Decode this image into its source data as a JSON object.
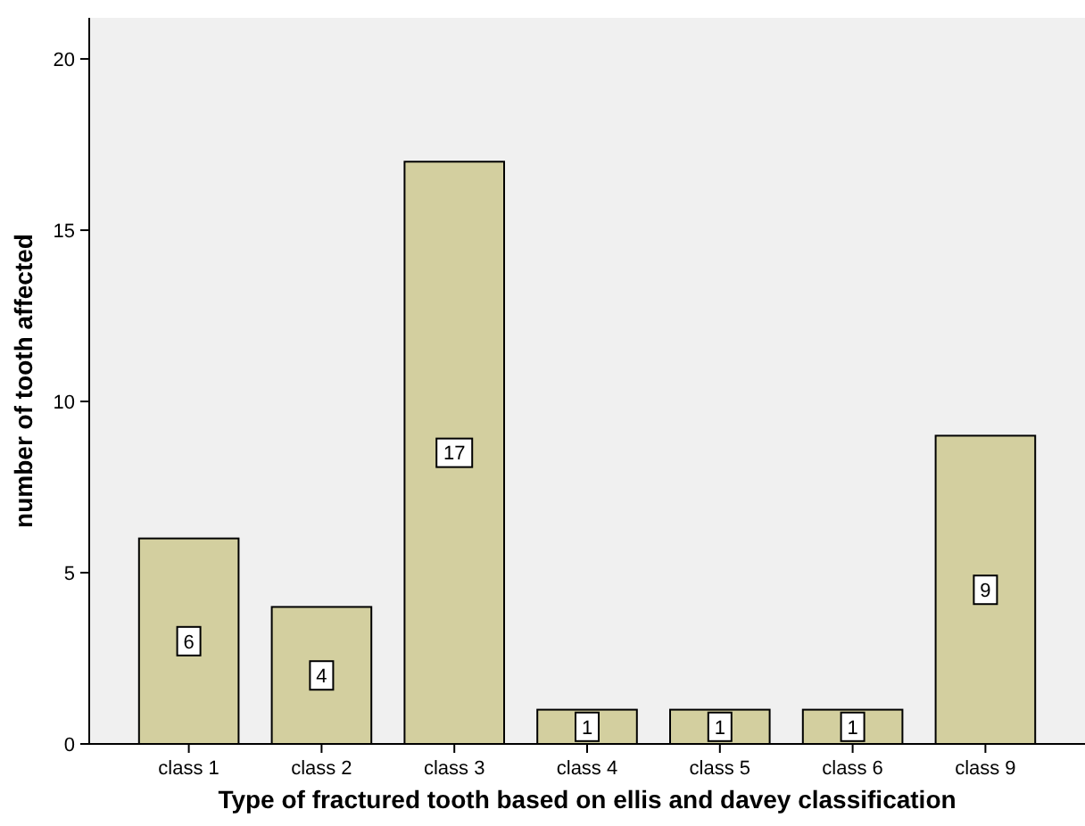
{
  "chart_data": {
    "type": "bar",
    "xlabel": "Type of fractured tooth based on ellis and davey classification",
    "ylabel": "number of tooth affected",
    "categories": [
      "class 1",
      "class 2",
      "class 3",
      "class 4",
      "class 5",
      "class 6",
      "class 9"
    ],
    "values": [
      6,
      4,
      17,
      1,
      1,
      1,
      9
    ],
    "color": "#d3cf9f",
    "ylim": [
      0,
      21.2
    ],
    "yticks": [
      0,
      5,
      10,
      15,
      20
    ],
    "data_labels": true,
    "grid": false
  }
}
